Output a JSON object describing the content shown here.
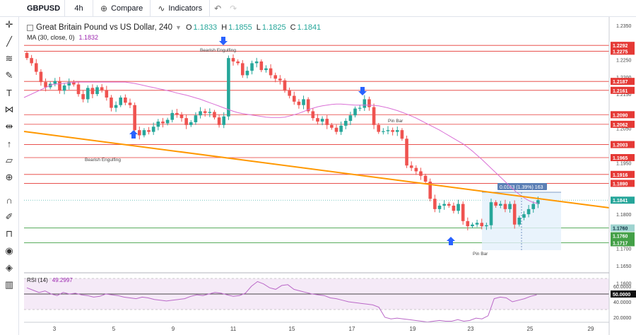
{
  "toolbar": {
    "symbol": "GBPUSD",
    "interval": "4h",
    "compare_label": "Compare",
    "indicators_label": "Indicators"
  },
  "left_toolbar": {
    "icons": [
      "crosshair-icon",
      "trend-line-icon",
      "fib-icon",
      "brush-icon",
      "text-icon",
      "pattern-icon",
      "measure-icon",
      "arrow-icon",
      "ruler-icon",
      "zoom-icon",
      "magnet-icon",
      "lock-draw-icon",
      "unlock-icon",
      "eye-icon",
      "layers-icon",
      "trash-icon"
    ]
  },
  "legend": {
    "title": "Great Britain Pound vs US Dollar, 240",
    "o_label": "O",
    "o": "1.1833",
    "h_label": "H",
    "h": "1.1855",
    "l_label": "L",
    "l": "1.1825",
    "c_label": "C",
    "c": "1.1841",
    "ma_label": "MA (30, close, 0)",
    "ma_value": "1.1832"
  },
  "rsi": {
    "label": "RSI (14)",
    "value": "49.2997"
  },
  "colors": {
    "up": "#26a69a",
    "down": "#ef5350",
    "trendline": "#ff9800",
    "ma": "#da70d6",
    "resistance": "#e53935",
    "support": "#43a047",
    "rsi": "#ba68c8",
    "arrow": "#2962ff"
  },
  "annotations": {
    "bearish_engulfing_top": "Bearish Engulfing",
    "bearish_engulfing_bottom": "Bearish Engulfing",
    "pin_bar_top": "Pin Bar",
    "pin_bar_bottom": "Pin Bar",
    "measure": "0.0163 (1.39%) 163"
  },
  "chart_data": {
    "type": "candlestick",
    "x_tick_labels": [
      "3",
      "5",
      "9",
      "11",
      "15",
      "17",
      "19",
      "23",
      "25",
      "29"
    ],
    "y_tick_labels": [
      "1.2350",
      "1.2250",
      "1.2200",
      "1.2150",
      "1.2050",
      "1.1950",
      "1.1800",
      "1.1700",
      "1.1650",
      "1.1600"
    ],
    "ylim": [
      1.165,
      1.236
    ],
    "resistance_levels": [
      1.2292,
      1.2275,
      1.2187,
      1.2161,
      1.209,
      1.2062,
      1.2003,
      1.1965,
      1.1916,
      1.189
    ],
    "support_levels": [
      1.176,
      1.1717
    ],
    "price_labels": [
      "1.2292",
      "1.2275",
      "1.2187",
      "1.2161",
      "1.2090",
      "1.2062",
      "1.2003",
      "1.1965",
      "1.1916",
      "1.1890",
      "1.1841",
      "1.1760",
      "1.1760",
      "1.1717"
    ],
    "last_price": 1.1841,
    "rsi_levels": [
      "60.0000",
      "50.0000",
      "40.0000",
      "20.0000"
    ],
    "closes": [
      1.2255,
      1.224,
      1.2215,
      1.2185,
      1.217,
      1.218,
      1.2188,
      1.216,
      1.2175,
      1.2185,
      1.2178,
      1.215,
      1.2135,
      1.2168,
      1.215,
      1.217,
      1.2162,
      1.214,
      1.211,
      1.2118,
      1.214,
      1.2125,
      1.2118,
      1.2045,
      1.203,
      1.2045,
      1.204,
      1.2055,
      1.207,
      1.2065,
      1.2075,
      1.2095,
      1.209,
      1.208,
      1.206,
      1.2068,
      1.2088,
      1.21,
      1.2095,
      1.2098,
      1.2082,
      1.206,
      1.2085,
      1.2255,
      1.2245,
      1.224,
      1.2205,
      1.2218,
      1.224,
      1.2245,
      1.222,
      1.2225,
      1.2205,
      1.2195,
      1.219,
      1.216,
      1.2145,
      1.2128,
      1.2118,
      1.2135,
      1.21,
      1.208,
      1.207,
      1.2078,
      1.206,
      1.2052,
      1.204,
      1.2058,
      1.2072,
      1.2088,
      1.2108,
      1.211,
      1.2135,
      1.2112,
      1.206,
      1.204,
      1.2042,
      1.2045,
      1.204,
      1.2045,
      1.202,
      1.1942,
      1.1935,
      1.1925,
      1.1912,
      1.1895,
      1.1845,
      1.1815,
      1.1825,
      1.183,
      1.1825,
      1.181,
      1.183,
      1.178,
      1.1765,
      1.177,
      1.1775,
      1.1765,
      1.1768,
      1.1835,
      1.1825,
      1.183,
      1.1815,
      1.183,
      1.177,
      1.179,
      1.18,
      1.1815,
      1.183,
      1.1841
    ],
    "ma_values": [
      1.2185,
      1.2185,
      1.2183,
      1.2181,
      1.2178,
      1.2175,
      1.2172,
      1.2169,
      1.2166,
      1.2163,
      1.216,
      1.2157,
      1.2153,
      1.215,
      1.2147,
      1.2143,
      1.2139,
      1.2135,
      1.213,
      1.2125,
      1.212,
      1.2115,
      1.211,
      1.2105,
      1.21,
      1.2096,
      1.2093,
      1.2091,
      1.2089,
      1.2087,
      1.2085,
      1.2083,
      1.2082,
      1.2082,
      1.2082,
      1.2083,
      1.2086,
      1.209,
      1.2094,
      1.2099,
      1.2105,
      1.2109,
      1.2113,
      1.2116,
      1.2118,
      1.212,
      1.2121,
      1.2121,
      1.212,
      1.2119,
      1.2118,
      1.2118,
      1.2118,
      1.2118,
      1.2117,
      1.2116,
      1.2113,
      1.211,
      1.2106,
      1.2102,
      1.2097,
      1.2092,
      1.2086,
      1.208,
      1.2073,
      1.2066,
      1.2059,
      1.2052,
      1.2045,
      1.2037,
      1.2029,
      1.2021,
      1.2013,
      1.2005,
      1.1995,
      1.1984,
      1.1972,
      1.196,
      1.1947,
      1.1934,
      1.1921,
      1.1908,
      1.1895,
      1.1882,
      1.1869,
      1.1858,
      1.1848,
      1.184,
      1.1834,
      1.1832
    ],
    "rsi_values": [
      58,
      55,
      52,
      54,
      50,
      48,
      52,
      50,
      51,
      49,
      48,
      46,
      47,
      50,
      49,
      48,
      46,
      45,
      44,
      46,
      45,
      43,
      42,
      41,
      42,
      43,
      44,
      47,
      49,
      48,
      50,
      52,
      51,
      49,
      47,
      48,
      51,
      60,
      66,
      63,
      58,
      56,
      61,
      62,
      56,
      54,
      52,
      50,
      49,
      48,
      45,
      44,
      42,
      40,
      39,
      38,
      37,
      36,
      33,
      20,
      18,
      19,
      18,
      17,
      16,
      15,
      14,
      15,
      16,
      15,
      15,
      17,
      15,
      16,
      19,
      18,
      22,
      44,
      46,
      45,
      40,
      42,
      44,
      47,
      49
    ]
  }
}
